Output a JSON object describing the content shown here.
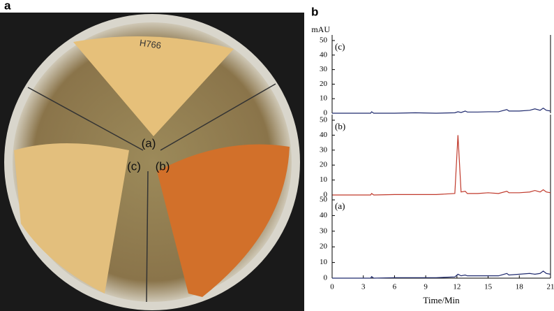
{
  "panel_labels": [
    "a",
    "b"
  ],
  "photo": {
    "sector_labels": [
      "(a)",
      "(b)",
      "(c)"
    ],
    "handwriting": "H766"
  },
  "chart_data": [
    {
      "type": "line",
      "label": "(c)",
      "ylabel": "mAU",
      "xlim": [
        0,
        21
      ],
      "ylim": [
        0,
        50
      ],
      "yticks": [
        0,
        10,
        20,
        30,
        40,
        50
      ],
      "x": [
        0,
        2,
        3.7,
        3.8,
        4,
        6,
        8,
        10,
        11.8,
        12.1,
        12.4,
        12.8,
        13,
        14,
        15,
        16,
        16.8,
        17,
        18,
        19,
        19.5,
        20,
        20.3,
        20.6,
        21
      ],
      "series": [
        {
          "color": "#1f2a6e",
          "values": [
            0,
            0,
            0,
            1,
            0,
            0,
            0.3,
            0,
            0.3,
            1,
            0.5,
            1.5,
            0.8,
            0.8,
            1,
            1,
            2.5,
            1.5,
            1.5,
            2,
            3,
            2,
            3.5,
            2,
            1.5
          ]
        }
      ]
    },
    {
      "type": "line",
      "label": "(b)",
      "xlim": [
        0,
        21
      ],
      "ylim": [
        0,
        50
      ],
      "yticks": [
        0,
        10,
        20,
        30,
        40,
        50
      ],
      "x": [
        0,
        2,
        3.7,
        3.8,
        4,
        6,
        8,
        10,
        11.8,
        12.1,
        12.4,
        12.8,
        13,
        14,
        15,
        16,
        16.8,
        17,
        18,
        19,
        19.5,
        20,
        20.3,
        20.6,
        21
      ],
      "series": [
        {
          "color": "#c0392b",
          "values": [
            0,
            0,
            0,
            1,
            0,
            0.3,
            0.3,
            0.3,
            1,
            40,
            2,
            2.5,
            1,
            1,
            1.5,
            1,
            2.5,
            1.5,
            1.5,
            2,
            3,
            2,
            3.5,
            2,
            1.5
          ]
        }
      ]
    },
    {
      "type": "line",
      "label": "(a)",
      "xlabel": "Time/Min",
      "xlim": [
        0,
        21
      ],
      "ylim": [
        0,
        50
      ],
      "yticks": [
        0,
        10,
        20,
        30,
        40,
        50
      ],
      "xticks": [
        0,
        3,
        6,
        9,
        12,
        15,
        18,
        21
      ],
      "x": [
        0,
        2,
        3.7,
        3.8,
        4,
        6,
        8,
        10,
        11.8,
        12.1,
        12.4,
        12.8,
        13,
        14,
        15,
        16,
        16.8,
        17,
        18,
        19,
        19.5,
        20,
        20.3,
        20.6,
        21
      ],
      "series": [
        {
          "color": "#1f2a6e",
          "values": [
            0,
            0,
            0,
            1,
            0,
            0.3,
            0.3,
            0.3,
            0.8,
            2.5,
            1.5,
            2,
            1.5,
            1.5,
            1.5,
            1.5,
            3,
            2,
            2.5,
            3,
            2.5,
            3,
            4.5,
            3,
            2.5
          ]
        }
      ]
    }
  ]
}
